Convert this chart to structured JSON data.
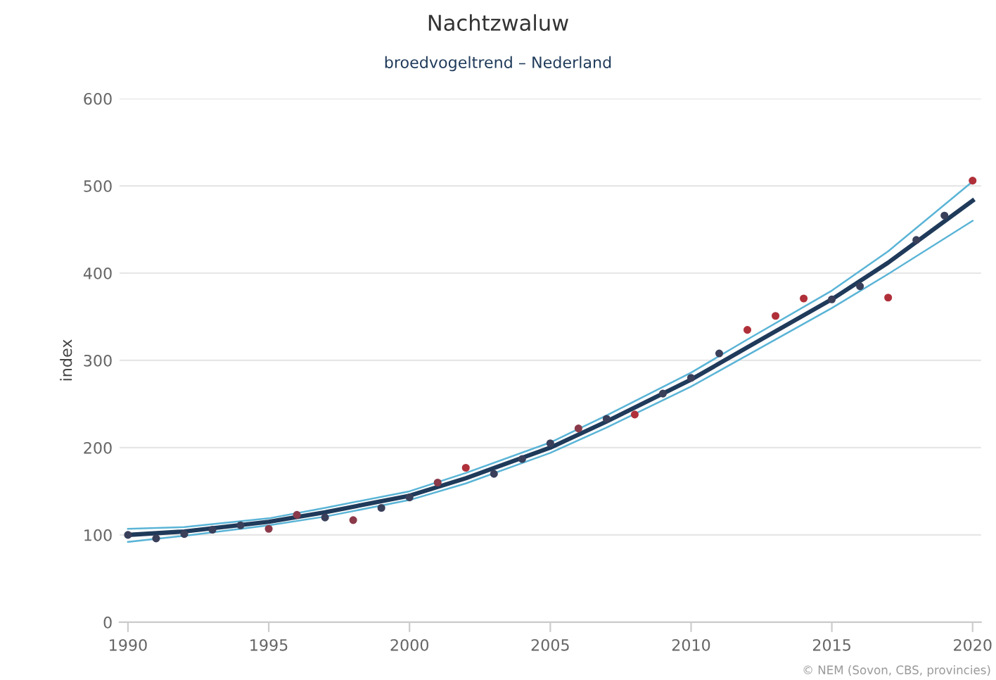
{
  "chart_data": {
    "type": "line",
    "title": "Nachtzwaluw",
    "subtitle": "broedvogeltrend – Nederland",
    "ylabel": "index",
    "series": [
      {
        "color": "#5ab4d6",
        "x": [
          1990,
          1992,
          1995,
          1997,
          2000,
          2002,
          2005,
          2007,
          2010,
          2012,
          2015,
          2017,
          2020
        ],
        "values": [
          92,
          99,
          111,
          121,
          140,
          159,
          194,
          223,
          270,
          306,
          360,
          399,
          460
        ]
      },
      {
        "color": "#5ab4d6",
        "x": [
          1990,
          1992,
          1995,
          1997,
          2000,
          2002,
          2005,
          2007,
          2010,
          2012,
          2015,
          2017,
          2020
        ],
        "values": [
          107,
          109,
          119,
          131,
          150,
          171,
          206,
          237,
          286,
          324,
          380,
          425,
          505
        ]
      },
      {
        "color": "#1f3a5a",
        "x": [
          1990,
          1992,
          1995,
          1997,
          2000,
          2002,
          2005,
          2007,
          2010,
          2012,
          2015,
          2017,
          2020
        ],
        "values": [
          100,
          104,
          115,
          126,
          145,
          165,
          200,
          230,
          278,
          315,
          370,
          412,
          483
        ]
      },
      {
        "type": "scatter",
        "marker": "circle",
        "x": [
          1990,
          1991,
          1992,
          1993,
          1994,
          1995,
          1996,
          1997,
          1998,
          1999,
          2000,
          2001,
          2002,
          2003,
          2004,
          2005,
          2006,
          2007,
          2008,
          2009,
          2010,
          2011,
          2012,
          2013,
          2014,
          2015,
          2016,
          2017,
          2018,
          2019,
          2020
        ],
        "values": [
          100,
          96,
          101,
          106,
          111,
          107,
          123,
          120,
          117,
          131,
          143,
          160,
          177,
          170,
          187,
          205,
          222,
          233,
          238,
          262,
          280,
          308,
          335,
          351,
          371,
          370,
          385,
          372,
          438,
          466,
          506
        ],
        "colors": [
          "#3a3f5a",
          "#3a3f5a",
          "#3a3f5a",
          "#3a3f5a",
          "#3a3f5a",
          "#8a3a4a",
          "#8a3a4a",
          "#3a3f5a",
          "#8a3a4a",
          "#3a3f5a",
          "#3a3f5a",
          "#8a3a4a",
          "#b0303a",
          "#3a3f5a",
          "#3a3f5a",
          "#3a3f5a",
          "#8a3a4a",
          "#3a3f5a",
          "#b0303a",
          "#3a3f5a",
          "#3a3f5a",
          "#3a3f5a",
          "#b0303a",
          "#b0303a",
          "#b0303a",
          "#3a3f5a",
          "#3a3f5a",
          "#b0303a",
          "#3a3f5a",
          "#3a3f5a",
          "#b0303a"
        ]
      }
    ],
    "xlim": [
      1989.7,
      2020.3
    ],
    "xticks": [
      1990,
      1995,
      2000,
      2005,
      2010,
      2015,
      2020
    ],
    "ylim": [
      0,
      600
    ],
    "yticks": [
      0,
      100,
      200,
      300,
      400,
      500,
      600
    ],
    "grid": "y",
    "annotations": [
      "© NEM (Sovon, CBS, provincies)"
    ]
  }
}
